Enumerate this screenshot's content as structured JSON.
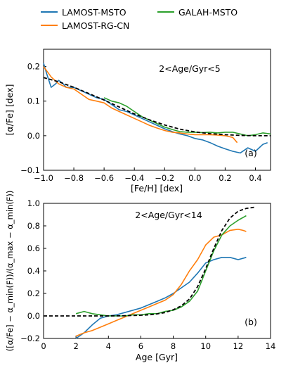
{
  "legend": [
    {
      "name": "LAMOST-MSTO",
      "color": "#1f77b4"
    },
    {
      "name": "GALAH-MSTO",
      "color": "#2ca02c"
    },
    {
      "name": "LAMOST-RG-CN",
      "color": "#ff7f0e"
    }
  ],
  "chart_data": [
    {
      "type": "line",
      "panel_label": "(a)",
      "annotation": "2<Age/Gyr<5",
      "xlabel": "[Fe/H] [dex]",
      "ylabel": "[α/Fe] [dex]",
      "xlim": [
        -1.0,
        0.5
      ],
      "ylim": [
        -0.1,
        0.25
      ],
      "xticks": [
        -1.0,
        -0.8,
        -0.6,
        -0.4,
        -0.2,
        0.0,
        0.2,
        0.4
      ],
      "xtick_labels": [
        "−1.0",
        "−0.8",
        "−0.6",
        "−0.4",
        "−0.2",
        "0.0",
        "0.2",
        "0.4"
      ],
      "yticks": [
        -0.1,
        0.0,
        0.1,
        0.2
      ],
      "ytick_labels": [
        "−0.1",
        "0.0",
        "0.1",
        "0.2"
      ],
      "series": [
        {
          "name": "LAMOST-MSTO",
          "color": "#1f77b4",
          "style": "solid",
          "x": [
            -1.0,
            -0.98,
            -0.95,
            -0.92,
            -0.9,
            -0.87,
            -0.85,
            -0.8,
            -0.75,
            -0.7,
            -0.65,
            -0.6,
            -0.55,
            -0.5,
            -0.45,
            -0.4,
            -0.35,
            -0.3,
            -0.25,
            -0.2,
            -0.15,
            -0.1,
            -0.05,
            0.0,
            0.05,
            0.1,
            0.15,
            0.2,
            0.25,
            0.3,
            0.35,
            0.4,
            0.45,
            0.48
          ],
          "y": [
            0.21,
            0.18,
            0.14,
            0.15,
            0.16,
            0.15,
            0.14,
            0.14,
            0.13,
            0.12,
            0.11,
            0.105,
            0.09,
            0.075,
            0.07,
            0.06,
            0.05,
            0.04,
            0.03,
            0.02,
            0.012,
            0.005,
            0.0,
            -0.008,
            -0.012,
            -0.02,
            -0.03,
            -0.038,
            -0.045,
            -0.05,
            -0.035,
            -0.045,
            -0.025,
            -0.02
          ]
        },
        {
          "name": "LAMOST-RG-CN",
          "color": "#ff7f0e",
          "style": "solid",
          "x": [
            -1.0,
            -0.95,
            -0.9,
            -0.85,
            -0.8,
            -0.75,
            -0.7,
            -0.65,
            -0.6,
            -0.55,
            -0.5,
            -0.45,
            -0.4,
            -0.35,
            -0.3,
            -0.25,
            -0.2,
            -0.15,
            -0.1,
            -0.05,
            0.0,
            0.05,
            0.1,
            0.15,
            0.2,
            0.25,
            0.28
          ],
          "y": [
            0.2,
            0.17,
            0.15,
            0.14,
            0.135,
            0.12,
            0.105,
            0.1,
            0.095,
            0.08,
            0.07,
            0.06,
            0.05,
            0.04,
            0.03,
            0.022,
            0.015,
            0.01,
            0.008,
            0.005,
            0.003,
            0.003,
            0.003,
            0.002,
            0.0,
            -0.005,
            -0.02
          ]
        },
        {
          "name": "GALAH-MSTO",
          "color": "#2ca02c",
          "style": "solid",
          "x": [
            -0.6,
            -0.55,
            -0.5,
            -0.45,
            -0.4,
            -0.35,
            -0.3,
            -0.25,
            -0.2,
            -0.15,
            -0.1,
            -0.05,
            0.0,
            0.05,
            0.1,
            0.15,
            0.2,
            0.25,
            0.3,
            0.35,
            0.4,
            0.45,
            0.5
          ],
          "y": [
            0.11,
            0.1,
            0.095,
            0.085,
            0.07,
            0.055,
            0.045,
            0.035,
            0.025,
            0.018,
            0.012,
            0.01,
            0.01,
            0.009,
            0.01,
            0.008,
            0.01,
            0.01,
            0.005,
            0.0,
            0.003,
            0.008,
            0.005
          ]
        },
        {
          "name": "",
          "color": "#000000",
          "style": "dashed",
          "x": [
            -1.0,
            -0.9,
            -0.8,
            -0.7,
            -0.6,
            -0.5,
            -0.4,
            -0.3,
            -0.2,
            -0.1,
            0.0,
            0.1,
            0.2,
            0.3,
            0.4,
            0.5
          ],
          "y": [
            0.168,
            0.156,
            0.14,
            0.122,
            0.103,
            0.083,
            0.063,
            0.046,
            0.031,
            0.019,
            0.011,
            0.006,
            0.003,
            0.001,
            0.0,
            0.0
          ]
        }
      ]
    },
    {
      "type": "line",
      "panel_label": "(b)",
      "annotation": "2<Age/Gyr<14",
      "xlabel": "Age [Gyr]",
      "ylabel": "([α/Fe] − α_min(F))/(α_max − α_min(F))",
      "xlim": [
        0,
        14
      ],
      "ylim": [
        -0.2,
        1.0
      ],
      "xticks": [
        0,
        2,
        4,
        6,
        8,
        10,
        12,
        14
      ],
      "xtick_labels": [
        "0",
        "2",
        "4",
        "6",
        "8",
        "10",
        "12",
        "14"
      ],
      "yticks": [
        -0.2,
        0.0,
        0.2,
        0.4,
        0.6,
        0.8,
        1.0
      ],
      "ytick_labels": [
        "−0.2",
        "0.0",
        "0.2",
        "0.4",
        "0.6",
        "0.8",
        "1.0"
      ],
      "series": [
        {
          "name": "LAMOST-MSTO",
          "color": "#1f77b4",
          "style": "solid",
          "x": [
            2.0,
            2.5,
            3.0,
            3.5,
            4.0,
            4.5,
            5.0,
            5.5,
            6.0,
            6.5,
            7.0,
            7.5,
            8.0,
            8.5,
            9.0,
            9.5,
            10.0,
            10.5,
            11.0,
            11.5,
            12.0,
            12.5
          ],
          "y": [
            -0.2,
            -0.15,
            -0.08,
            -0.02,
            0.0,
            0.01,
            0.03,
            0.05,
            0.07,
            0.1,
            0.13,
            0.16,
            0.2,
            0.25,
            0.3,
            0.38,
            0.47,
            0.5,
            0.52,
            0.52,
            0.5,
            0.52
          ]
        },
        {
          "name": "LAMOST-RG-CN",
          "color": "#ff7f0e",
          "style": "solid",
          "x": [
            2.0,
            2.5,
            3.0,
            3.5,
            4.0,
            4.5,
            5.0,
            5.5,
            6.0,
            6.5,
            7.0,
            7.5,
            8.0,
            8.5,
            9.0,
            9.5,
            10.0,
            10.5,
            11.0,
            11.5,
            12.0,
            12.3,
            12.5
          ],
          "y": [
            -0.18,
            -0.15,
            -0.13,
            -0.1,
            -0.07,
            -0.04,
            -0.01,
            0.02,
            0.05,
            0.08,
            0.11,
            0.14,
            0.19,
            0.28,
            0.4,
            0.5,
            0.63,
            0.7,
            0.72,
            0.76,
            0.77,
            0.76,
            0.75
          ]
        },
        {
          "name": "GALAH-MSTO",
          "color": "#2ca02c",
          "style": "solid",
          "x": [
            2.0,
            2.5,
            3.0,
            3.5,
            4.0,
            4.5,
            5.0,
            5.5,
            6.0,
            6.5,
            7.0,
            7.5,
            8.0,
            8.5,
            9.0,
            9.5,
            10.0,
            10.5,
            11.0,
            11.5,
            12.0,
            12.5
          ],
          "y": [
            0.02,
            0.04,
            0.02,
            0.01,
            0.0,
            0.0,
            0.0,
            0.01,
            0.01,
            0.02,
            0.02,
            0.04,
            0.05,
            0.08,
            0.13,
            0.22,
            0.4,
            0.58,
            0.72,
            0.8,
            0.85,
            0.89
          ]
        },
        {
          "name": "",
          "color": "#000000",
          "style": "dashed",
          "x": [
            0,
            1,
            2,
            3,
            4,
            5,
            6,
            6.5,
            7,
            7.5,
            8,
            8.5,
            9,
            9.5,
            10,
            10.5,
            11,
            11.5,
            12,
            12.5,
            13.0
          ],
          "y": [
            0.0,
            0.0,
            0.0,
            0.0,
            0.0,
            0.002,
            0.006,
            0.01,
            0.018,
            0.03,
            0.055,
            0.09,
            0.15,
            0.26,
            0.42,
            0.6,
            0.76,
            0.87,
            0.93,
            0.955,
            0.965
          ]
        }
      ]
    }
  ]
}
